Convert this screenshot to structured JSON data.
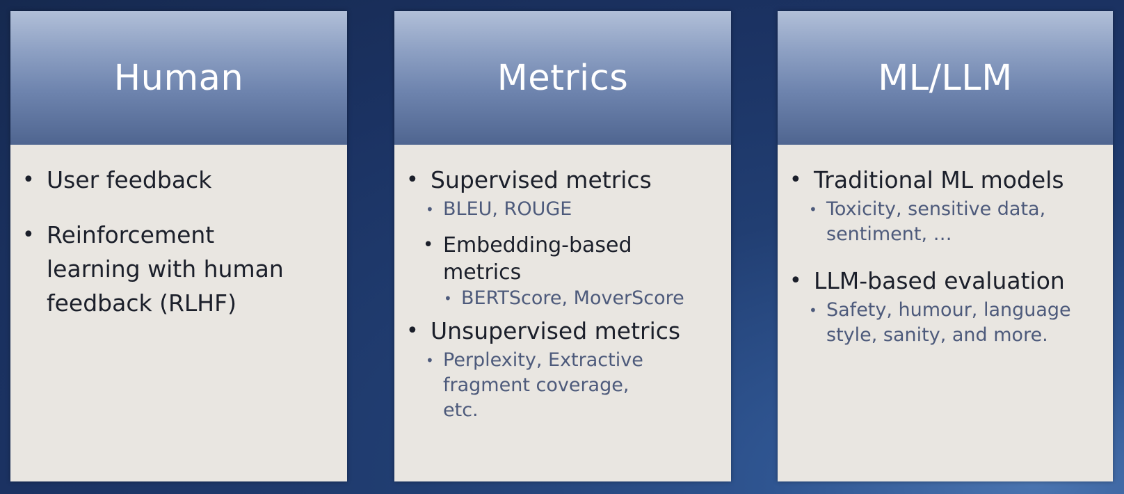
{
  "columns": [
    {
      "title": "Human",
      "items": [
        {
          "text": "User feedback"
        },
        {
          "text": "Reinforcement learning with human feedback (RLHF)"
        }
      ]
    },
    {
      "title": "Metrics",
      "items": [
        {
          "text": "Supervised metrics",
          "sub": "BLEU, ROUGE"
        },
        {
          "text": "Embedding-based metrics",
          "sub": "BERTScore, MoverScore"
        },
        {
          "text": "Unsupervised metrics",
          "sub": "Perplexity, Extractive fragment coverage, etc."
        }
      ]
    },
    {
      "title": "ML/LLM",
      "items": [
        {
          "text": "Traditional ML models",
          "sub": "Toxicity, sensitive data, sentiment, …"
        },
        {
          "text": "LLM-based evaluation",
          "sub": "Safety, humour, language style, sanity, and more."
        }
      ]
    }
  ]
}
